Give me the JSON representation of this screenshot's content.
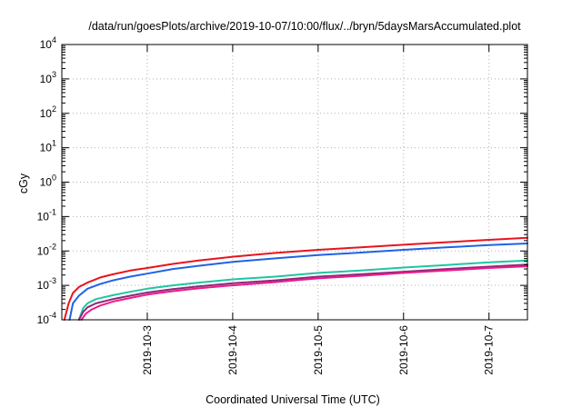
{
  "chart_data": {
    "type": "line",
    "title": "/data/run/goesPlots/archive/2019-10-07/10:00/flux/../bryn/5daysMarsAccumulated.plot",
    "xlabel": "Coordinated Universal Time (UTC)",
    "ylabel": "cGy",
    "y_scale": "log",
    "ylim": [
      0.0001,
      10000
    ],
    "xlim": [
      0,
      5.45
    ],
    "y_ticks": [
      {
        "value": 0.0001,
        "base": "10",
        "exp": "-4"
      },
      {
        "value": 0.001,
        "base": "10",
        "exp": "-3"
      },
      {
        "value": 0.01,
        "base": "10",
        "exp": "-2"
      },
      {
        "value": 0.1,
        "base": "10",
        "exp": "-1"
      },
      {
        "value": 1,
        "base": "10",
        "exp": "0"
      },
      {
        "value": 10,
        "base": "10",
        "exp": "1"
      },
      {
        "value": 100,
        "base": "10",
        "exp": "2"
      },
      {
        "value": 1000,
        "base": "10",
        "exp": "3"
      },
      {
        "value": 10000,
        "base": "10",
        "exp": "4"
      }
    ],
    "x_ticks": [
      {
        "value": 1,
        "label": "2019-10-3"
      },
      {
        "value": 2,
        "label": "2019-10-4"
      },
      {
        "value": 3,
        "label": "2019-10-5"
      },
      {
        "value": 4,
        "label": "2019-10-6"
      },
      {
        "value": 5,
        "label": "2019-10-7"
      }
    ],
    "grid": true,
    "legend": "none",
    "series": [
      {
        "color": "#e8141c",
        "x": [
          0.03,
          0.08,
          0.13,
          0.2,
          0.3,
          0.45,
          0.6,
          0.8,
          1.0,
          1.3,
          1.6,
          2.0,
          2.5,
          3.0,
          3.5,
          4.0,
          4.5,
          5.0,
          5.45
        ],
        "y": [
          0.0001,
          0.0003,
          0.0006,
          0.0009,
          0.0012,
          0.0017,
          0.0021,
          0.0027,
          0.0032,
          0.0042,
          0.0053,
          0.0068,
          0.0088,
          0.0108,
          0.0128,
          0.0152,
          0.018,
          0.021,
          0.024
        ]
      },
      {
        "color": "#1f62e6",
        "x": [
          0.09,
          0.13,
          0.2,
          0.3,
          0.45,
          0.6,
          0.8,
          1.0,
          1.3,
          1.6,
          2.0,
          2.5,
          3.0,
          3.5,
          4.0,
          4.5,
          5.0,
          5.45
        ],
        "y": [
          0.0001,
          0.0003,
          0.0005,
          0.0008,
          0.0011,
          0.0014,
          0.0018,
          0.0022,
          0.003,
          0.0037,
          0.0048,
          0.0061,
          0.0076,
          0.009,
          0.0108,
          0.0127,
          0.0148,
          0.0165
        ]
      },
      {
        "color": "#22c4a2",
        "x": [
          0.2,
          0.25,
          0.3,
          0.4,
          0.6,
          0.8,
          1.0,
          1.3,
          1.6,
          2.0,
          2.5,
          3.0,
          3.5,
          4.0,
          4.5,
          5.0,
          5.45
        ],
        "y": [
          0.0001,
          0.00022,
          0.0003,
          0.0004,
          0.00052,
          0.00065,
          0.0008,
          0.001,
          0.0012,
          0.0015,
          0.0018,
          0.0023,
          0.0027,
          0.0033,
          0.0039,
          0.0047,
          0.0053
        ]
      },
      {
        "color": "#8a2a7a",
        "x": [
          0.2,
          0.25,
          0.3,
          0.4,
          0.6,
          0.8,
          1.0,
          1.3,
          1.6,
          2.0,
          2.5,
          3.0,
          3.5,
          4.0,
          4.5,
          5.0,
          5.45
        ],
        "y": [
          0.0001,
          0.00017,
          0.00023,
          0.0003,
          0.0004,
          0.0005,
          0.00062,
          0.00078,
          0.00093,
          0.00115,
          0.0014,
          0.0018,
          0.0021,
          0.0025,
          0.003,
          0.0035,
          0.004
        ]
      },
      {
        "color": "#ef1a8c",
        "x": [
          0.23,
          0.28,
          0.35,
          0.45,
          0.6,
          0.8,
          1.0,
          1.3,
          1.6,
          2.0,
          2.5,
          3.0,
          3.5,
          4.0,
          4.5,
          5.0,
          5.45
        ],
        "y": [
          0.0001,
          0.00015,
          0.0002,
          0.00026,
          0.00034,
          0.00043,
          0.00054,
          0.00068,
          0.00082,
          0.001,
          0.00125,
          0.0016,
          0.0019,
          0.0023,
          0.0027,
          0.0032,
          0.0036
        ]
      }
    ]
  }
}
